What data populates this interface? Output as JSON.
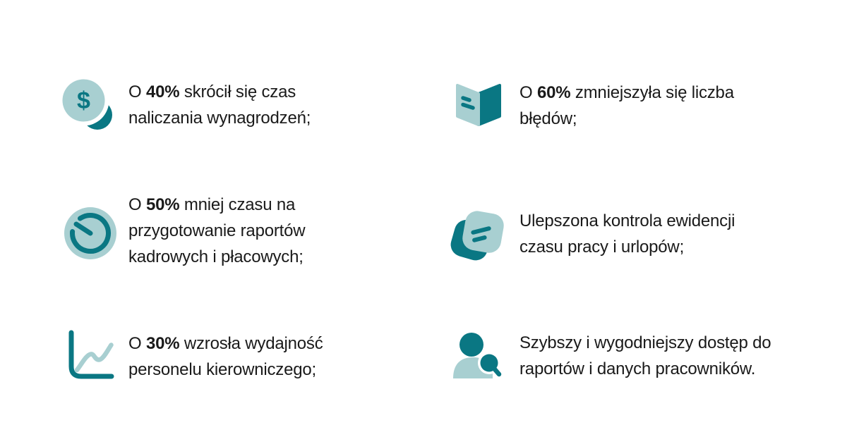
{
  "colors": {
    "teal_dark": "#0a7783",
    "teal_light": "#a8cfd1",
    "text": "#1a1a1a",
    "bg": "#ffffff"
  },
  "icon_glyphs": {
    "dollar": "$"
  },
  "items": [
    {
      "icon": "money-coin-icon",
      "lines": [
        [
          {
            "t": "O ",
            "b": 0
          },
          {
            "t": "40%",
            "b": 1
          },
          {
            "t": " skrócił się czas",
            "b": 0
          }
        ],
        [
          {
            "t": "naliczania wynagrodzeń;",
            "b": 0
          }
        ]
      ]
    },
    {
      "icon": "open-book-icon",
      "lines": [
        [
          {
            "t": "O ",
            "b": 0
          },
          {
            "t": "60%",
            "b": 1
          },
          {
            "t": " zmniejszyła się liczba",
            "b": 0
          }
        ],
        [
          {
            "t": "błędów;",
            "b": 0
          }
        ]
      ]
    },
    {
      "icon": "timer-icon",
      "lines": [
        [
          {
            "t": "O ",
            "b": 0
          },
          {
            "t": "50%",
            "b": 1
          },
          {
            "t": " mniej czasu na",
            "b": 0
          }
        ],
        [
          {
            "t": "przygotowanie raportów",
            "b": 0
          }
        ],
        [
          {
            "t": "kadrowych i płacowych;",
            "b": 0
          }
        ]
      ]
    },
    {
      "icon": "chat-notes-icon",
      "lines": [
        [
          {
            "t": "Ulepszona kontrola ewidencji",
            "b": 0
          }
        ],
        [
          {
            "t": "czasu pracy i urlopów;",
            "b": 0
          }
        ]
      ]
    },
    {
      "icon": "line-chart-icon",
      "lines": [
        [
          {
            "t": "O ",
            "b": 0
          },
          {
            "t": "30%",
            "b": 1
          },
          {
            "t": " wzrosła wydajność́",
            "b": 0
          }
        ],
        [
          {
            "t": "personelu kierowniczego;",
            "b": 0
          }
        ]
      ]
    },
    {
      "icon": "person-search-icon",
      "lines": [
        [
          {
            "t": "Szybszy i wygodniejszy dostęp do",
            "b": 0
          }
        ],
        [
          {
            "t": "raportów i danych pracowników.",
            "b": 0
          }
        ]
      ]
    }
  ]
}
